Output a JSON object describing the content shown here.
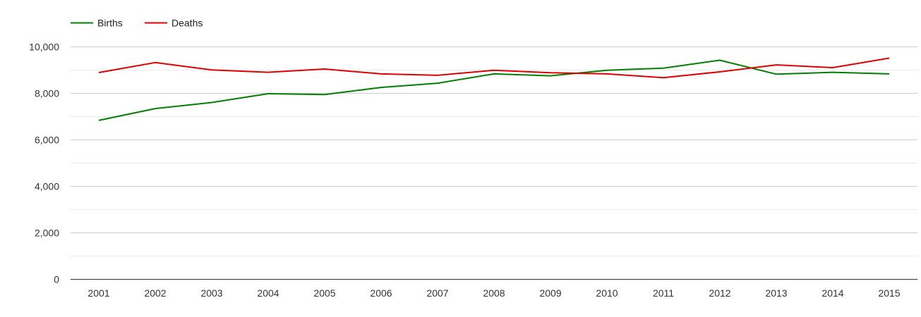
{
  "chart_data": {
    "type": "line",
    "categories": [
      "2001",
      "2002",
      "2003",
      "2004",
      "2005",
      "2006",
      "2007",
      "2008",
      "2009",
      "2010",
      "2011",
      "2012",
      "2013",
      "2014",
      "2015"
    ],
    "series": [
      {
        "name": "Births",
        "color": "#008000",
        "values": [
          6820,
          7330,
          7590,
          7970,
          7930,
          8240,
          8420,
          8820,
          8740,
          8980,
          9070,
          9410,
          8810,
          8890,
          8820
        ]
      },
      {
        "name": "Deaths",
        "color": "#e00000",
        "values": [
          8880,
          9310,
          8990,
          8890,
          9030,
          8820,
          8760,
          8980,
          8870,
          8820,
          8660,
          8910,
          9210,
          9090,
          9500
        ]
      }
    ],
    "ylim": [
      0,
      10000
    ],
    "yticks": [
      0,
      2000,
      4000,
      6000,
      8000,
      10000
    ],
    "ytick_labels": [
      "0",
      "2,000",
      "4,000",
      "6,000",
      "8,000",
      "10,000"
    ],
    "grid": true,
    "legend_position": "top-left",
    "title": "",
    "xlabel": "",
    "ylabel": ""
  }
}
